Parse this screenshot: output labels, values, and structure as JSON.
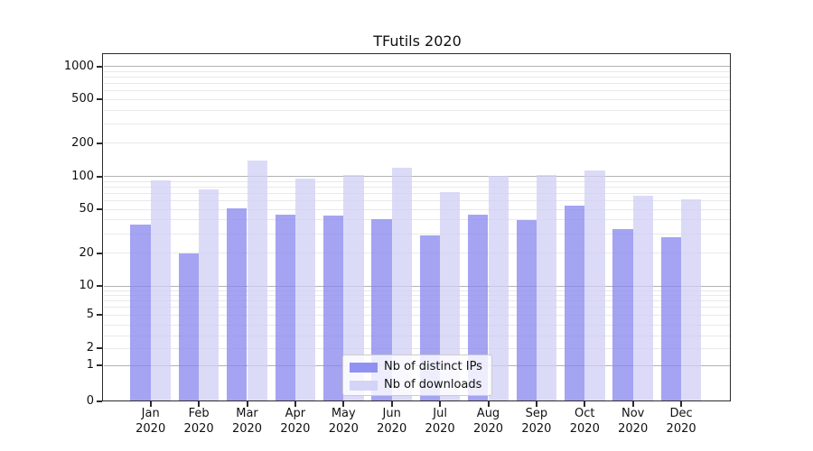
{
  "colors": {
    "ips_bar": "#8585ef",
    "downloads_bar": "#cfcff6",
    "grid_major": "#b3b3b3",
    "grid_minor": "#e9e9e9",
    "spine": "#2b2b2b"
  },
  "chart_data": {
    "type": "bar",
    "title": "TFutils 2020",
    "categories": [
      "Jan",
      "Feb",
      "Mar",
      "Apr",
      "May",
      "Jun",
      "Jul",
      "Aug",
      "Sep",
      "Oct",
      "Nov",
      "Dec"
    ],
    "category_year": "2020",
    "series": [
      {
        "name": "Nb of distinct IPs",
        "values": [
          36,
          20,
          51,
          45,
          44,
          41,
          29,
          45,
          40,
          54,
          33,
          28
        ]
      },
      {
        "name": "Nb of downloads",
        "values": [
          92,
          76,
          140,
          96,
          103,
          119,
          72,
          101,
          102,
          113,
          66,
          62
        ]
      }
    ],
    "xlabel": "",
    "ylabel": "",
    "yscale": "symlog",
    "yticks": [
      0,
      1,
      2,
      5,
      10,
      20,
      50,
      100,
      200,
      500,
      1000
    ],
    "ylim": [
      0,
      1300
    ],
    "grid": "on",
    "legend_position": "lower-center"
  }
}
